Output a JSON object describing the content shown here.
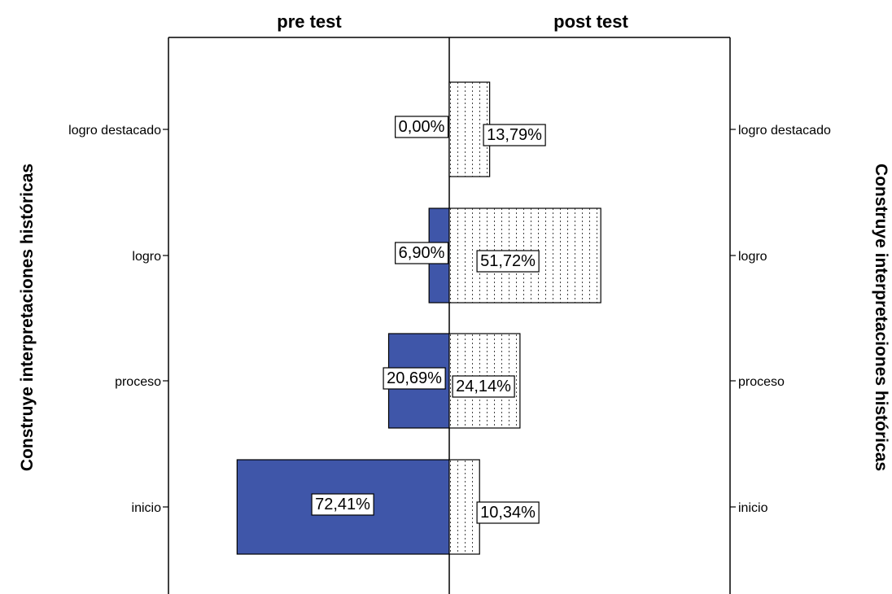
{
  "chart_data": {
    "type": "bar",
    "orientation": "horizontal",
    "layout": "population-pyramid",
    "panels": [
      "pre test",
      "post test"
    ],
    "categories": [
      "logro destacado",
      "logro",
      "proceso",
      "inicio"
    ],
    "series": [
      {
        "name": "pre test",
        "values": [
          0.0,
          6.9,
          20.69,
          72.41
        ],
        "labels": [
          "0,00%",
          "6,90%",
          "20,69%",
          "72,41%"
        ],
        "color": "#3f56a9",
        "fill": "solid"
      },
      {
        "name": "post test",
        "values": [
          13.79,
          51.72,
          24.14,
          10.34
        ],
        "labels": [
          "13,79%",
          "51,72%",
          "24,14%",
          "10,34%"
        ],
        "color": "#ffffff",
        "fill": "dotted"
      }
    ],
    "ylabel_left": "Construye interpretaciones históricas",
    "ylabel_right": "Construye interpretaciones históricas",
    "unit": "%",
    "xlim": [
      0,
      100
    ],
    "grid": false
  }
}
